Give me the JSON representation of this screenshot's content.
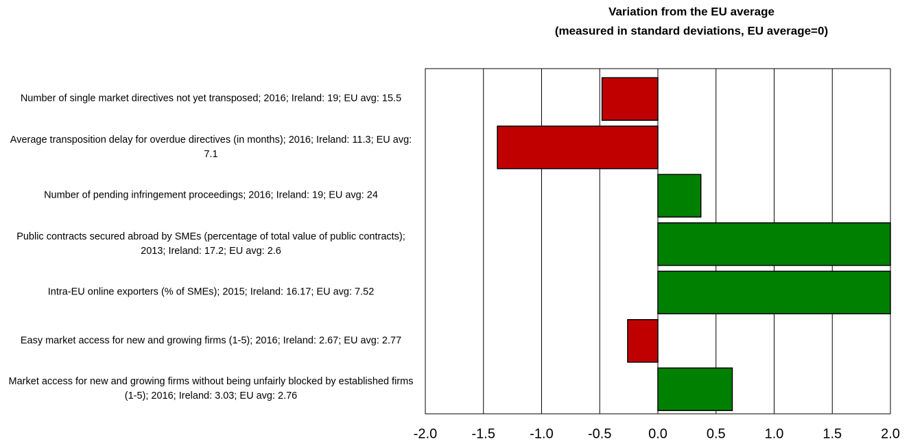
{
  "chart_data": {
    "type": "hbar",
    "title": "Variation from the EU average",
    "subtitle": "(measured in standard deviations, EU average=0)",
    "categories": [
      "Number of single market directives not yet transposed; 2016; Ireland: 19; EU avg: 15.5",
      "Average transposition delay for overdue directives (in months); 2016; Ireland: 11.3; EU avg: 7.1",
      "Number of pending infringement proceedings; 2016; Ireland: 19; EU avg: 24",
      "Public contracts secured abroad by SMEs (percentage of total value of public contracts); 2013; Ireland: 17.2; EU avg: 2.6",
      "Intra-EU online exporters (% of SMEs); 2015; Ireland: 16.17; EU avg: 7.52",
      "Easy market access for new and growing firms (1-5); 2016; Ireland: 2.67; EU avg: 2.77",
      "Market access for new and growing firms without being unfairly blocked by established firms (1-5); 2016; Ireland: 3.03; EU avg: 2.76"
    ],
    "values": [
      -0.48,
      -1.38,
      0.37,
      2.0,
      2.0,
      -0.26,
      0.64
    ],
    "positive_color": "#008000",
    "negative_color": "#c00000",
    "xlim": [
      -2,
      2
    ],
    "xticks": [
      {
        "value": -2,
        "label": "-2.0"
      },
      -1.5,
      {
        "value": -1,
        "label": "-1.0"
      },
      -0.5,
      {
        "value": 0,
        "label": "0.0"
      },
      0.5,
      {
        "value": 1,
        "label": "1.0"
      },
      1.5,
      {
        "value": 2,
        "label": "2.0"
      }
    ],
    "grid": true
  }
}
